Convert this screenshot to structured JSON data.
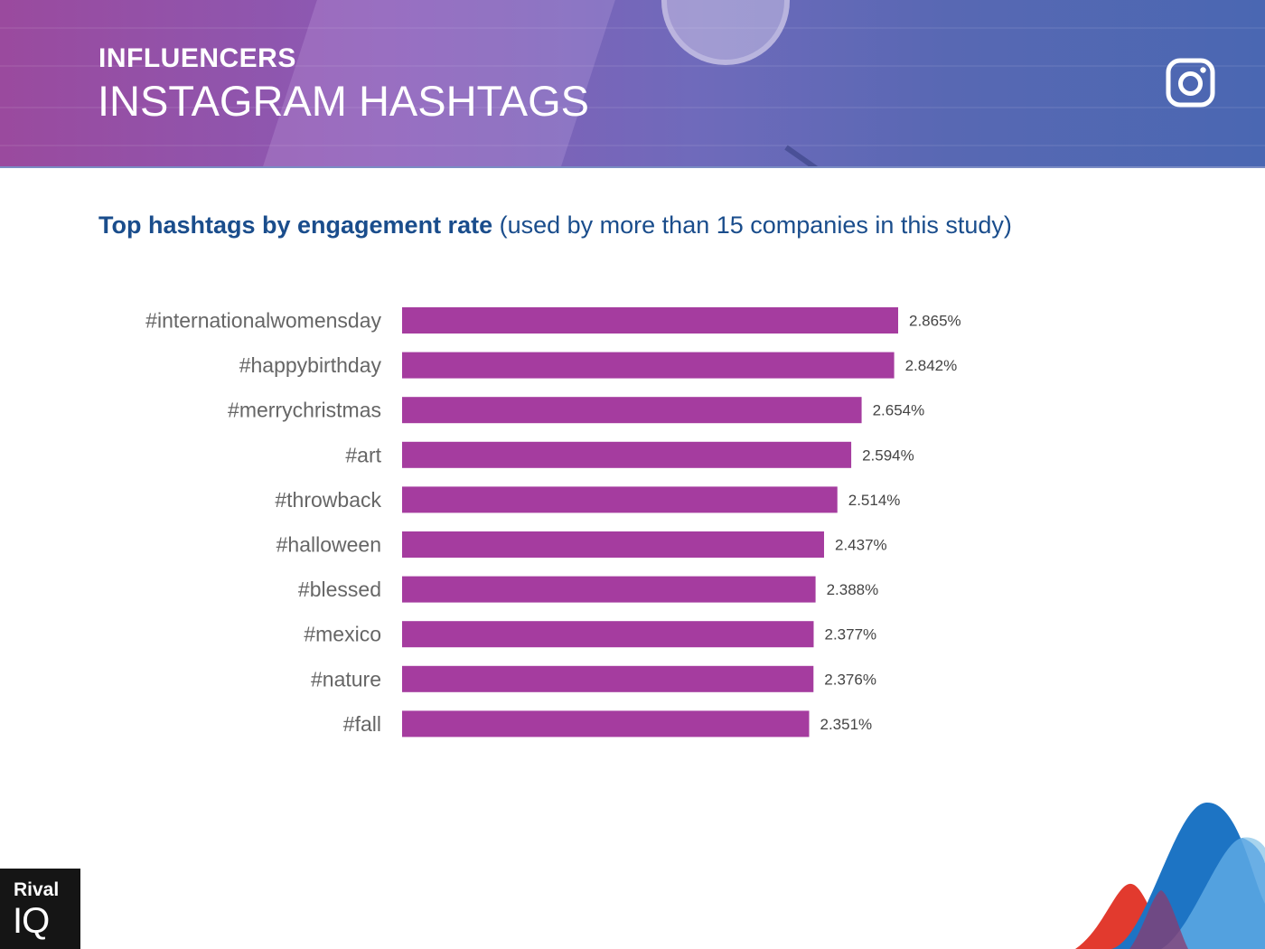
{
  "header": {
    "kicker": "INFLUENCERS",
    "headline": "INSTAGRAM HASHTAGS",
    "platform_icon": "instagram-icon"
  },
  "subtitle": {
    "strong": "Top hashtags by engagement rate",
    "light": "(used by more than 15 companies in this study)"
  },
  "logo": {
    "line1": "Rival",
    "line2": "IQ"
  },
  "colors": {
    "bar": "#a53c9f",
    "category_label": "#666666",
    "value_label": "#444444",
    "subtitle": "#1a4d8c"
  },
  "chart_data": {
    "type": "bar",
    "orientation": "horizontal",
    "categories": [
      "#internationalwomensday",
      "#happybirthday",
      "#merrychristmas",
      "#art",
      "#throwback",
      "#halloween",
      "#blessed",
      "#mexico",
      "#nature",
      "#fall"
    ],
    "values": [
      2.865,
      2.842,
      2.654,
      2.594,
      2.514,
      2.437,
      2.388,
      2.377,
      2.376,
      2.351
    ],
    "value_labels": [
      "2.865%",
      "2.842%",
      "2.654%",
      "2.594%",
      "2.514%",
      "2.437%",
      "2.388%",
      "2.377%",
      "2.376%",
      "2.351%"
    ],
    "xlim": [
      0,
      3.0
    ],
    "unit": "%",
    "grid": false,
    "legend": "none"
  }
}
